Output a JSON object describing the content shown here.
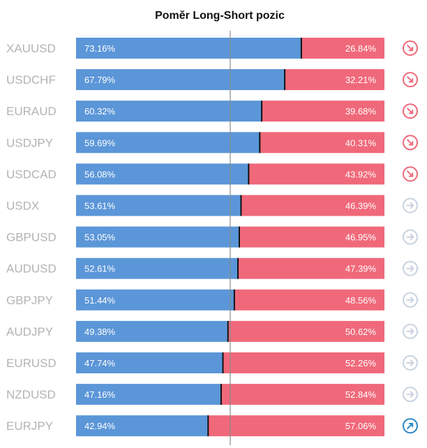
{
  "colors": {
    "long": "#5b96d8",
    "short": "#f0697a",
    "divider": "#111111",
    "center_line": "#8a8a8a",
    "symbol_text": "#b3b3b3",
    "icon_down": "#f0697a",
    "icon_neutral": "#c8d3df",
    "icon_up": "#2b87c8"
  },
  "chart_data": {
    "type": "bar",
    "stacked": true,
    "orientation": "horizontal",
    "title": "Poměr Long-Short pozic",
    "xlim": [
      0,
      100
    ],
    "reference_line": 50,
    "categories": [
      "XAUUSD",
      "USDCHF",
      "EURAUD",
      "USDJPY",
      "USDCAD",
      "USDX",
      "GBPUSD",
      "AUDUSD",
      "GBPJPY",
      "AUDJPY",
      "EURUSD",
      "NZDUSD",
      "EURJPY"
    ],
    "series": [
      {
        "values": [
          73.16,
          67.79,
          60.32,
          59.69,
          56.08,
          53.61,
          53.05,
          52.61,
          51.44,
          49.38,
          47.74,
          47.16,
          42.94
        ]
      },
      {
        "values": [
          26.84,
          32.21,
          39.68,
          40.31,
          43.92,
          46.39,
          46.95,
          47.39,
          48.56,
          50.62,
          52.26,
          52.84,
          57.06
        ]
      }
    ],
    "long_labels": [
      "73.16%",
      "67.79%",
      "60.32%",
      "59.69%",
      "56.08%",
      "53.61%",
      "53.05%",
      "52.61%",
      "51.44%",
      "49.38%",
      "47.74%",
      "47.16%",
      "42.94%"
    ],
    "short_labels": [
      "26.84%",
      "32.21%",
      "39.68%",
      "40.31%",
      "43.92%",
      "46.39%",
      "46.95%",
      "47.39%",
      "48.56%",
      "50.62%",
      "52.26%",
      "52.84%",
      "57.06%"
    ],
    "signals": [
      "arrow-down-right-icon",
      "arrow-down-right-icon",
      "arrow-down-right-icon",
      "arrow-down-right-icon",
      "arrow-down-right-icon",
      "arrow-right-icon",
      "arrow-right-icon",
      "arrow-right-icon",
      "arrow-right-icon",
      "arrow-right-icon",
      "arrow-right-icon",
      "arrow-right-icon",
      "arrow-up-right-icon"
    ]
  }
}
